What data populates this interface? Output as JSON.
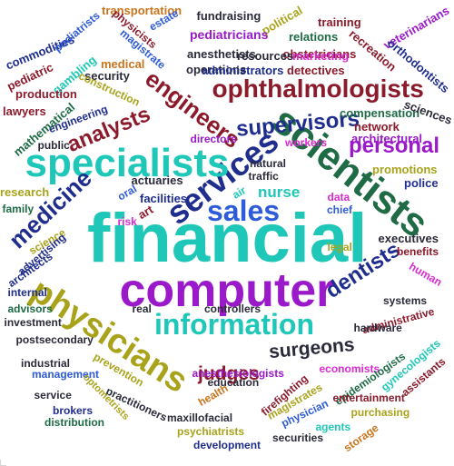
{
  "colors": {
    "teal": "#1ec7b8",
    "purple": "#9a19c9",
    "navy": "#1f2d8c",
    "maroon": "#8b1a2b",
    "olive": "#a9a31c",
    "darkgreen": "#1e6b45",
    "dark": "#2a2a3a",
    "magenta": "#d92ad1",
    "orange": "#c8741c",
    "blue": "#2e5bd8"
  },
  "words": [
    {
      "text": "financial",
      "color": "teal"
    },
    {
      "text": "computer",
      "color": "purple"
    },
    {
      "text": "services",
      "color": "navy"
    },
    {
      "text": "scientists",
      "color": "darkgreen"
    },
    {
      "text": "specialists",
      "color": "teal"
    },
    {
      "text": "sales",
      "color": "blue"
    },
    {
      "text": "information",
      "color": "teal"
    },
    {
      "text": "physicians",
      "color": "olive"
    },
    {
      "text": "ophthalmologists",
      "color": "maroon"
    },
    {
      "text": "engineers",
      "color": "maroon"
    },
    {
      "text": "analysts",
      "color": "maroon"
    },
    {
      "text": "supervisors",
      "color": "navy"
    },
    {
      "text": "medicine",
      "color": "navy"
    },
    {
      "text": "personal",
      "color": "purple"
    },
    {
      "text": "dentists",
      "color": "navy"
    },
    {
      "text": "judges",
      "color": "maroon"
    },
    {
      "text": "surgeons",
      "color": "dark"
    },
    {
      "text": "nurse",
      "color": "teal"
    },
    {
      "text": "transportation",
      "color": "orange"
    },
    {
      "text": "commodities",
      "color": "navy"
    },
    {
      "text": "podiatrists",
      "color": "blue"
    },
    {
      "text": "physicists",
      "color": "maroon"
    },
    {
      "text": "estate",
      "color": "blue"
    },
    {
      "text": "fundraising",
      "color": "dark"
    },
    {
      "text": "political",
      "color": "olive"
    },
    {
      "text": "training",
      "color": "maroon"
    },
    {
      "text": "veterinarians",
      "color": "purple"
    },
    {
      "text": "pediatricians",
      "color": "purple"
    },
    {
      "text": "relations",
      "color": "darkgreen"
    },
    {
      "text": "recreation",
      "color": "maroon"
    },
    {
      "text": "orthodontists",
      "color": "navy"
    },
    {
      "text": "anesthetists",
      "color": "dark"
    },
    {
      "text": "obstetricians",
      "color": "maroon"
    },
    {
      "text": "magistrate",
      "color": "blue"
    },
    {
      "text": "pediatric",
      "color": "maroon"
    },
    {
      "text": "gambling",
      "color": "teal"
    },
    {
      "text": "medical",
      "color": "orange"
    },
    {
      "text": "operations",
      "color": "dark"
    },
    {
      "text": "resources",
      "color": "dark"
    },
    {
      "text": "marketing",
      "color": "magenta"
    },
    {
      "text": "administrators",
      "color": "navy"
    },
    {
      "text": "detectives",
      "color": "maroon"
    },
    {
      "text": "security",
      "color": "dark"
    },
    {
      "text": "production",
      "color": "maroon"
    },
    {
      "text": "construction",
      "color": "olive"
    },
    {
      "text": "lawyers",
      "color": "maroon"
    },
    {
      "text": "engineering",
      "color": "navy"
    },
    {
      "text": "mathematical",
      "color": "darkgreen"
    },
    {
      "text": "compensation",
      "color": "darkgreen"
    },
    {
      "text": "sciences",
      "color": "dark"
    },
    {
      "text": "network",
      "color": "maroon"
    },
    {
      "text": "architectural",
      "color": "purple"
    },
    {
      "text": "directors",
      "color": "purple"
    },
    {
      "text": "workers",
      "color": "magenta"
    },
    {
      "text": "public",
      "color": "dark"
    },
    {
      "text": "promotions",
      "color": "olive"
    },
    {
      "text": "actuaries",
      "color": "dark"
    },
    {
      "text": "traffic",
      "color": "dark"
    },
    {
      "text": "natural",
      "color": "dark"
    },
    {
      "text": "police",
      "color": "navy"
    },
    {
      "text": "research",
      "color": "olive"
    },
    {
      "text": "family",
      "color": "darkgreen"
    },
    {
      "text": "oral",
      "color": "blue"
    },
    {
      "text": "facilities",
      "color": "navy"
    },
    {
      "text": "art",
      "color": "maroon"
    },
    {
      "text": "air",
      "color": "teal"
    },
    {
      "text": "data",
      "color": "magenta"
    },
    {
      "text": "chief",
      "color": "blue"
    },
    {
      "text": "risk",
      "color": "magenta"
    },
    {
      "text": "science",
      "color": "olive"
    },
    {
      "text": "advertising",
      "color": "navy"
    },
    {
      "text": "architects",
      "color": "navy"
    },
    {
      "text": "executives",
      "color": "dark"
    },
    {
      "text": "benefits",
      "color": "maroon"
    },
    {
      "text": "legal",
      "color": "olive"
    },
    {
      "text": "human",
      "color": "magenta"
    },
    {
      "text": "internal",
      "color": "navy"
    },
    {
      "text": "advisors",
      "color": "darkgreen"
    },
    {
      "text": "investment",
      "color": "dark"
    },
    {
      "text": "postsecondary",
      "color": "dark"
    },
    {
      "text": "real",
      "color": "dark"
    },
    {
      "text": "controllers",
      "color": "dark"
    },
    {
      "text": "systems",
      "color": "dark"
    },
    {
      "text": "administrative",
      "color": "maroon"
    },
    {
      "text": "hardware",
      "color": "dark"
    },
    {
      "text": "industrial",
      "color": "dark"
    },
    {
      "text": "management",
      "color": "blue"
    },
    {
      "text": "prevention",
      "color": "olive"
    },
    {
      "text": "anesthesiologists",
      "color": "purple"
    },
    {
      "text": "economists",
      "color": "magenta"
    },
    {
      "text": "epidemiologists",
      "color": "darkgreen"
    },
    {
      "text": "gynecologists",
      "color": "teal"
    },
    {
      "text": "assistants",
      "color": "maroon"
    },
    {
      "text": "education",
      "color": "dark"
    },
    {
      "text": "service",
      "color": "dark"
    },
    {
      "text": "practitioners",
      "color": "dark"
    },
    {
      "text": "optometrists",
      "color": "olive"
    },
    {
      "text": "health",
      "color": "orange"
    },
    {
      "text": "firefighting",
      "color": "maroon"
    },
    {
      "text": "magistrates",
      "color": "olive"
    },
    {
      "text": "entertainment",
      "color": "maroon"
    },
    {
      "text": "brokers",
      "color": "navy"
    },
    {
      "text": "distribution",
      "color": "darkgreen"
    },
    {
      "text": "maxillofacial",
      "color": "dark"
    },
    {
      "text": "physician",
      "color": "blue"
    },
    {
      "text": "purchasing",
      "color": "olive"
    },
    {
      "text": "agents",
      "color": "teal"
    },
    {
      "text": "psychiatrists",
      "color": "olive"
    },
    {
      "text": "securities",
      "color": "dark"
    },
    {
      "text": "development",
      "color": "navy"
    },
    {
      "text": "storage",
      "color": "orange"
    }
  ]
}
